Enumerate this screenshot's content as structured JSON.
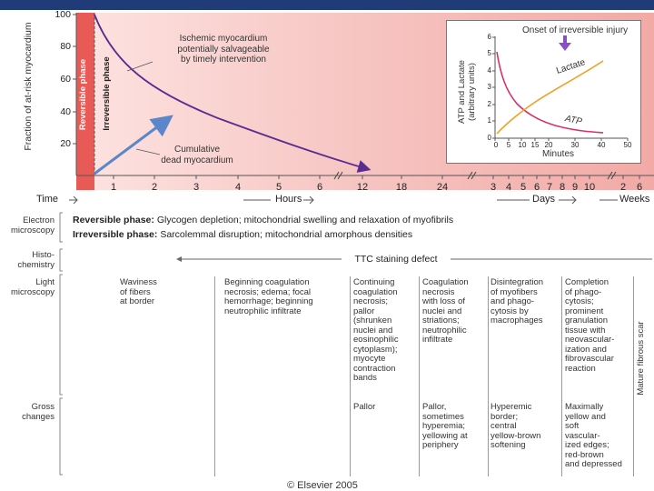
{
  "colors": {
    "header_bar": "#1f3c78",
    "reversible_red": "#e85a55",
    "pink_bg": "#f4b8b5",
    "curve": "#5b2c8f",
    "arrow_blue": "#5b86c9",
    "lactate": "#f0a020",
    "atp": "#d6336c",
    "marker": "#8a4fc6"
  },
  "main_chart": {
    "ylabel": "Fraction of at-risk myocardium",
    "yticks": [
      "20",
      "40",
      "60",
      "80",
      "100"
    ],
    "reversible_label": "Reversible phase",
    "irreversible_label": "Irreversible phase",
    "ischemic_annotation": "Ischemic myocardium\npotentially salvageable\nby timely intervention",
    "dead_annotation": "Cumulative\ndead myocardium"
  },
  "time_axis": {
    "label_time": "Time",
    "hour_ticks": [
      "1",
      "2",
      "3",
      "4",
      "5",
      "6",
      "12",
      "18",
      "24"
    ],
    "hours_label": "Hours",
    "day_ticks": [
      "3",
      "4",
      "5",
      "6",
      "7",
      "8",
      "9",
      "10"
    ],
    "days_label": "Days",
    "week_ticks": [
      "2",
      "6"
    ],
    "weeks_label": "Weeks"
  },
  "inset": {
    "title": "Onset of irreversible injury",
    "ylabel": "ATP and Lactate\n(arbitrary units)",
    "xlabel": "Minutes",
    "xticks": [
      "0",
      "5",
      "10",
      "15",
      "20",
      "30",
      "40",
      "50"
    ],
    "yticks": [
      "0",
      "1",
      "2",
      "3",
      "4",
      "5",
      "6"
    ],
    "lactate_label": "Lactate",
    "atp_label": "ATP"
  },
  "rows": {
    "electron_label": "Electron\nmicroscopy",
    "reversible_title": "Reversible phase:",
    "reversible_text": "Glycogen depletion; mitochondrial swelling and relaxation of myofibrils",
    "irreversible_title": "Irreversible phase:",
    "irreversible_text": "Sarcolemmal disruption; mitochondrial amorphous densities",
    "histo_label": "Histo-\nchemistry",
    "ttc_text": "TTC staining defect",
    "light_label": "Light\nmicroscopy",
    "light_cells": [
      "Waviness\nof fibers\nat border",
      "Beginning coagulation\nnecrosis; edema; focal\nhemorrhage; beginning\nneutrophilic infiltrate",
      "Continuing\ncoagulation\nnecrosis;\npallor\n(shrunken\nnuclei and\neosinophilic\ncytoplasm);\nmyocyte\ncontraction\nbands",
      "Coagulation\nnecrosis\nwith loss of\nnuclei and\nstriations;\nneutrophilic\ninfiltrate",
      "Disintegration\nof myofibers\nand phago-\ncytosis by\nmacrophages",
      "Completion\nof phago-\ncytosis;\nprominent\ngranulation\ntissue with\nneovascular-\nization and\nfibrovascular\nreaction"
    ],
    "scar_label": "Mature fibrous scar",
    "gross_label": "Gross\nchanges",
    "gross_cells": [
      "Pallor",
      "Pallor,\nsometimes\nhyperemia;\nyellowing at\nperiphery",
      "Hyperemic\nborder;\ncentral\nyellow-brown\nsoftening",
      "Maximally\nyellow and\nsoft\nvascular-\nized edges;\nred-brown\nand depressed"
    ]
  },
  "footer": {
    "copyright": "© Elsevier 2005"
  }
}
